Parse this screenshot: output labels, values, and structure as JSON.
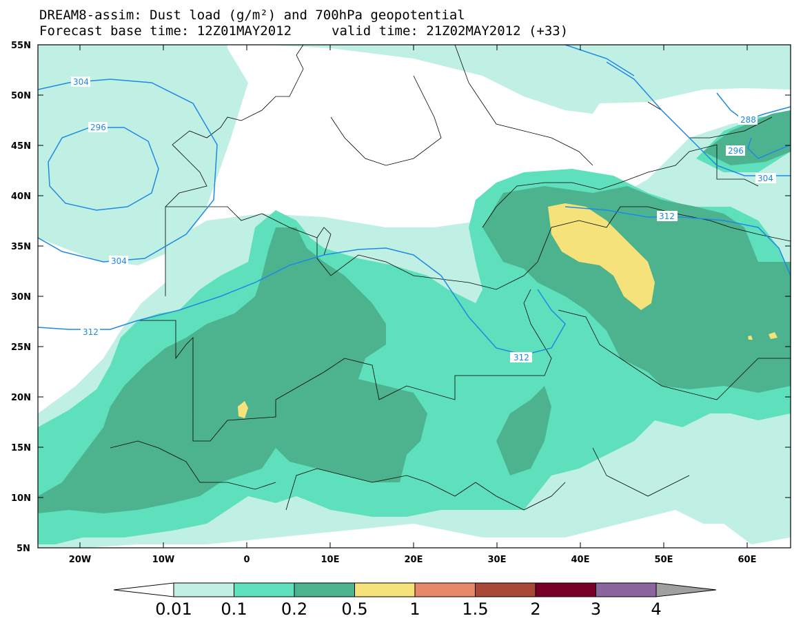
{
  "header": {
    "line1": "DREAM8-assim: Dust load (g/m²) and 700hPa geopotential",
    "base_time": "Forecast base time: 12Z01MAY2012",
    "valid_time": "valid time: 21Z02MAY2012 (+33)"
  },
  "axes": {
    "lat_labels": [
      "55N",
      "50N",
      "45N",
      "40N",
      "35N",
      "30N",
      "25N",
      "20N",
      "15N",
      "10N",
      "5N"
    ],
    "lon_labels": [
      "20W",
      "10W",
      "0",
      "10E",
      "20E",
      "30E",
      "40E",
      "50E",
      "60E"
    ]
  },
  "contours": {
    "color": "#1e88e5",
    "labels": [
      "304",
      "296",
      "304",
      "312",
      "312",
      "288",
      "296",
      "304",
      "312"
    ]
  },
  "colorbar": {
    "levels": [
      "0.01",
      "0.1",
      "0.2",
      "0.5",
      "1",
      "1.5",
      "2",
      "3",
      "4"
    ],
    "colors": [
      "#c0f0e4",
      "#5ee0bc",
      "#4db38f",
      "#f5e27a",
      "#e8886a",
      "#a84838",
      "#780028",
      "#8c64a0",
      "#a0a0a0"
    ]
  }
}
